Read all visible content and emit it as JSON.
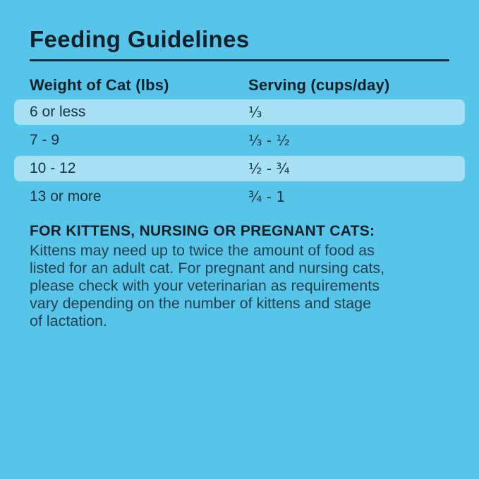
{
  "title": "Feeding Guidelines",
  "table": {
    "columns": [
      {
        "label": "Weight of Cat (lbs)"
      },
      {
        "label": "Serving (cups/day)"
      }
    ],
    "rows": [
      {
        "weight": "6 or less",
        "serving": "⅓",
        "highlighted": true
      },
      {
        "weight": "7 - 9",
        "serving": "⅓ - ½",
        "highlighted": false
      },
      {
        "weight": "10 - 12",
        "serving": "½ - ¾",
        "highlighted": true
      },
      {
        "weight": "13 or more",
        "serving": "¾ - 1",
        "highlighted": false
      }
    ]
  },
  "note": {
    "heading": "FOR KITTENS, NURSING OR PREGNANT CATS:",
    "lines": [
      "Kittens may need up to twice the amount of food as",
      "listed for an adult cat. For pregnant and nursing cats,",
      "please check with your veterinarian as requirements",
      "vary depending on the number of kittens and stage",
      "of lactation."
    ]
  },
  "colors": {
    "background": "#57C5E9",
    "row_highlight": "#A6E0F2",
    "heading_text": "#0E2028",
    "body_text": "#23404F",
    "divider": "#112A38"
  }
}
